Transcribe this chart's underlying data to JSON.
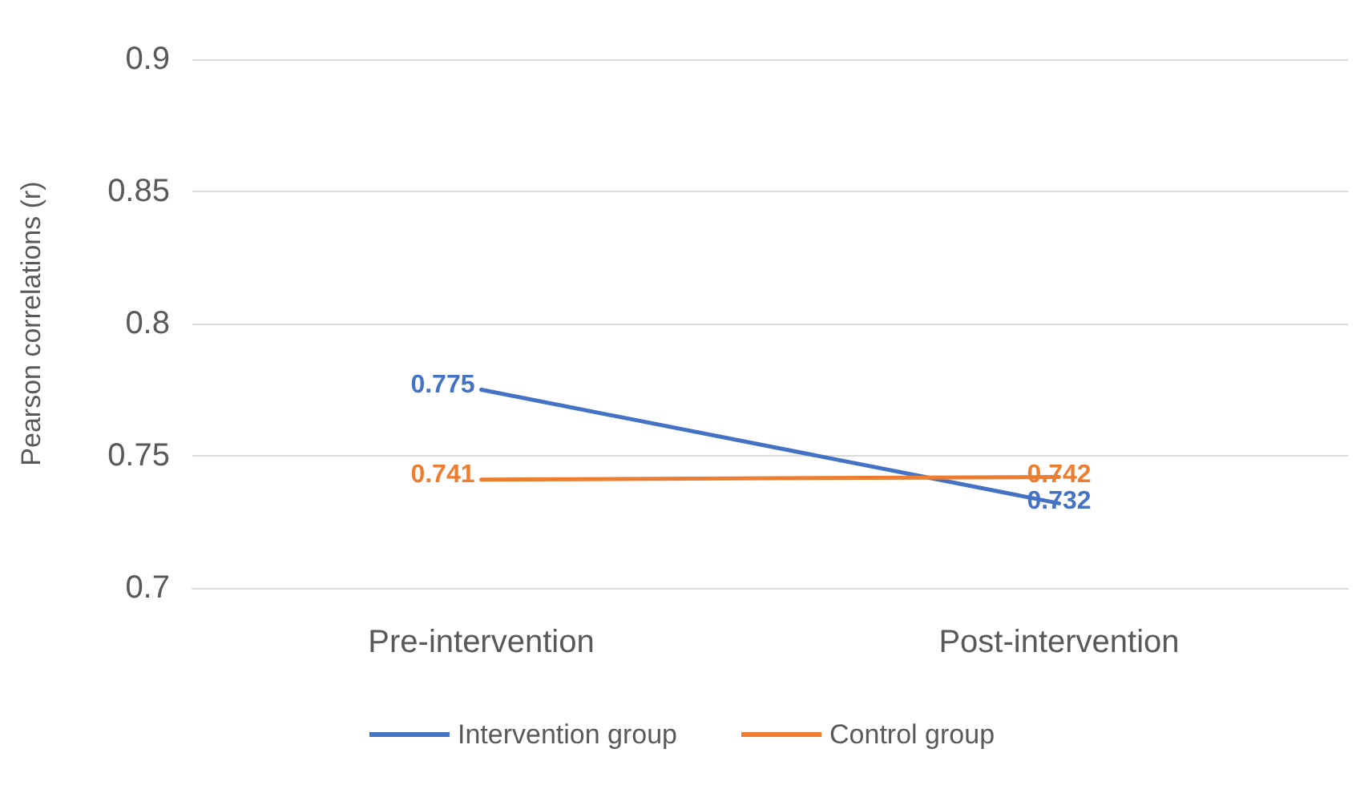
{
  "chart_data": {
    "type": "line",
    "ylabel": "Pearson correlations (r)",
    "categories": [
      "Pre-intervention",
      "Post-intervention"
    ],
    "series": [
      {
        "name": "Intervention group",
        "color": "#4472c4",
        "values": [
          0.775,
          0.732
        ]
      },
      {
        "name": "Control group",
        "color": "#ed7d31",
        "values": [
          0.741,
          0.742
        ]
      }
    ],
    "ylim": [
      0.7,
      0.9
    ],
    "yticks": [
      0.7,
      0.75,
      0.8,
      0.85,
      0.9
    ],
    "grid": "y",
    "legend": "bottom",
    "data_labels": true,
    "marker": "none",
    "line_style": "solid"
  }
}
